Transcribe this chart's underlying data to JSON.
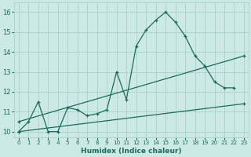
{
  "xlabel": "Humidex (Indice chaleur)",
  "x_ticks": [
    0,
    1,
    2,
    3,
    4,
    5,
    6,
    7,
    8,
    9,
    10,
    11,
    12,
    13,
    14,
    15,
    16,
    17,
    18,
    19,
    20,
    21,
    22,
    23
  ],
  "y_ticks": [
    10,
    11,
    12,
    13,
    14,
    15,
    16
  ],
  "xlim": [
    -0.5,
    23.5
  ],
  "ylim": [
    9.7,
    16.5
  ],
  "background_color": "#cce9e5",
  "grid_color": "#aed4cf",
  "line_color": "#1a6b5e",
  "series": [
    {
      "x": [
        0,
        1,
        2,
        3,
        4,
        5,
        6,
        7,
        8,
        9,
        10,
        11,
        12,
        13,
        14,
        15,
        16,
        17,
        18,
        19,
        20,
        21,
        22
      ],
      "y": [
        10.0,
        10.5,
        11.5,
        10.0,
        10.0,
        11.2,
        11.1,
        10.8,
        10.9,
        11.1,
        13.0,
        11.6,
        14.3,
        15.1,
        15.6,
        16.0,
        15.5,
        14.8,
        13.8,
        13.3,
        12.5,
        12.2,
        12.2
      ]
    },
    {
      "x": [
        0,
        23
      ],
      "y": [
        10.5,
        13.8
      ]
    },
    {
      "x": [
        0,
        23
      ],
      "y": [
        10.0,
        11.4
      ]
    }
  ]
}
